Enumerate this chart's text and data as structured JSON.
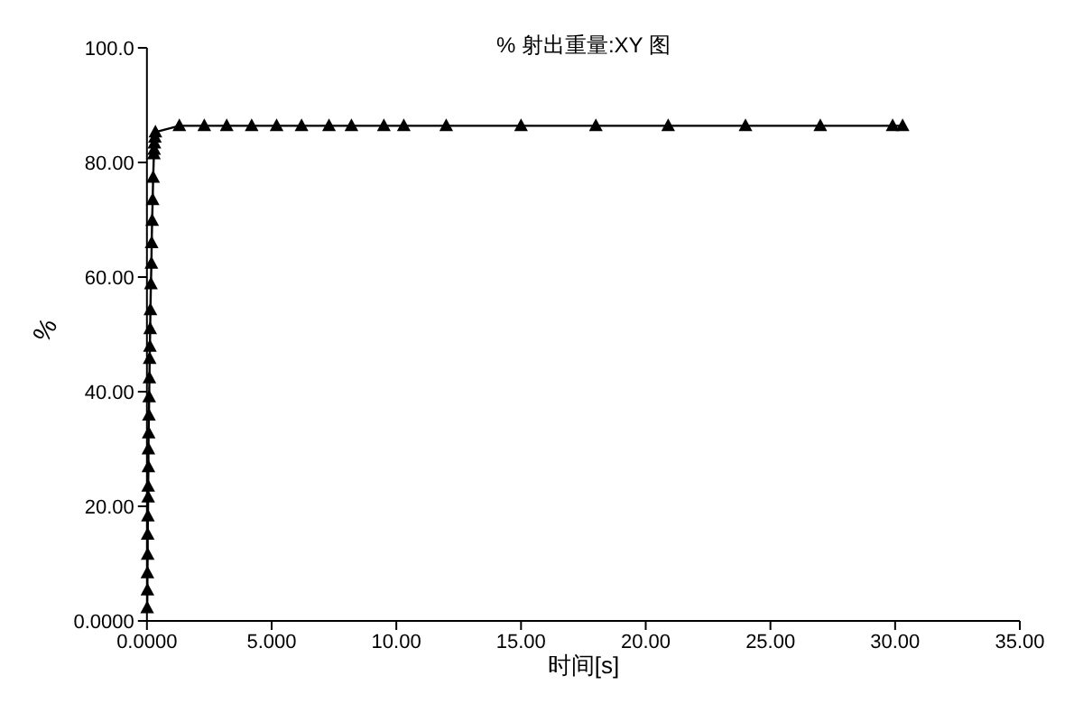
{
  "chart_data": {
    "type": "line",
    "title": "% 射出重量:XY 图",
    "xlabel": "时间[s]",
    "ylabel": "%",
    "xlim": [
      0,
      35
    ],
    "ylim": [
      0,
      100
    ],
    "xticks": [
      {
        "value": 0,
        "label": "0.0000"
      },
      {
        "value": 5,
        "label": "5.000"
      },
      {
        "value": 10,
        "label": "10.00"
      },
      {
        "value": 15,
        "label": "15.00"
      },
      {
        "value": 20,
        "label": "20.00"
      },
      {
        "value": 25,
        "label": "25.00"
      },
      {
        "value": 30,
        "label": "30.00"
      },
      {
        "value": 35,
        "label": "35.00"
      }
    ],
    "yticks": [
      {
        "value": 0,
        "label": "0.0000"
      },
      {
        "value": 20,
        "label": "20.00"
      },
      {
        "value": 40,
        "label": "40.00"
      },
      {
        "value": 60,
        "label": "60.00"
      },
      {
        "value": 80,
        "label": "80.00"
      },
      {
        "value": 100,
        "label": "100.0"
      }
    ],
    "marker": "triangle",
    "line_style": "solid",
    "series": [
      {
        "color": "#000000",
        "x": [
          0.01,
          0.02,
          0.02,
          0.03,
          0.03,
          0.04,
          0.05,
          0.05,
          0.06,
          0.06,
          0.07,
          0.08,
          0.09,
          0.1,
          0.11,
          0.12,
          0.13,
          0.14,
          0.16,
          0.18,
          0.19,
          0.21,
          0.23,
          0.25,
          0.28,
          0.29,
          0.3,
          0.32,
          0.34,
          1.3,
          2.3,
          3.2,
          4.2,
          5.2,
          6.2,
          7.3,
          8.2,
          9.5,
          10.3,
          12.0,
          15.0,
          18.0,
          20.9,
          24.0,
          27.0,
          29.9,
          30.3
        ],
        "values": [
          2.3,
          5.4,
          8.4,
          11.6,
          15.1,
          18.3,
          21.6,
          23.5,
          26.9,
          30.0,
          32.8,
          35.9,
          39.1,
          42.4,
          45.8,
          47.9,
          51.0,
          54.3,
          58.8,
          62.4,
          66.0,
          69.9,
          73.5,
          77.4,
          81.5,
          82.3,
          83.4,
          84.4,
          85.3,
          86.4,
          86.4,
          86.4,
          86.4,
          86.4,
          86.4,
          86.4,
          86.4,
          86.4,
          86.4,
          86.4,
          86.4,
          86.4,
          86.4,
          86.4,
          86.4,
          86.4,
          86.4
        ]
      }
    ]
  }
}
